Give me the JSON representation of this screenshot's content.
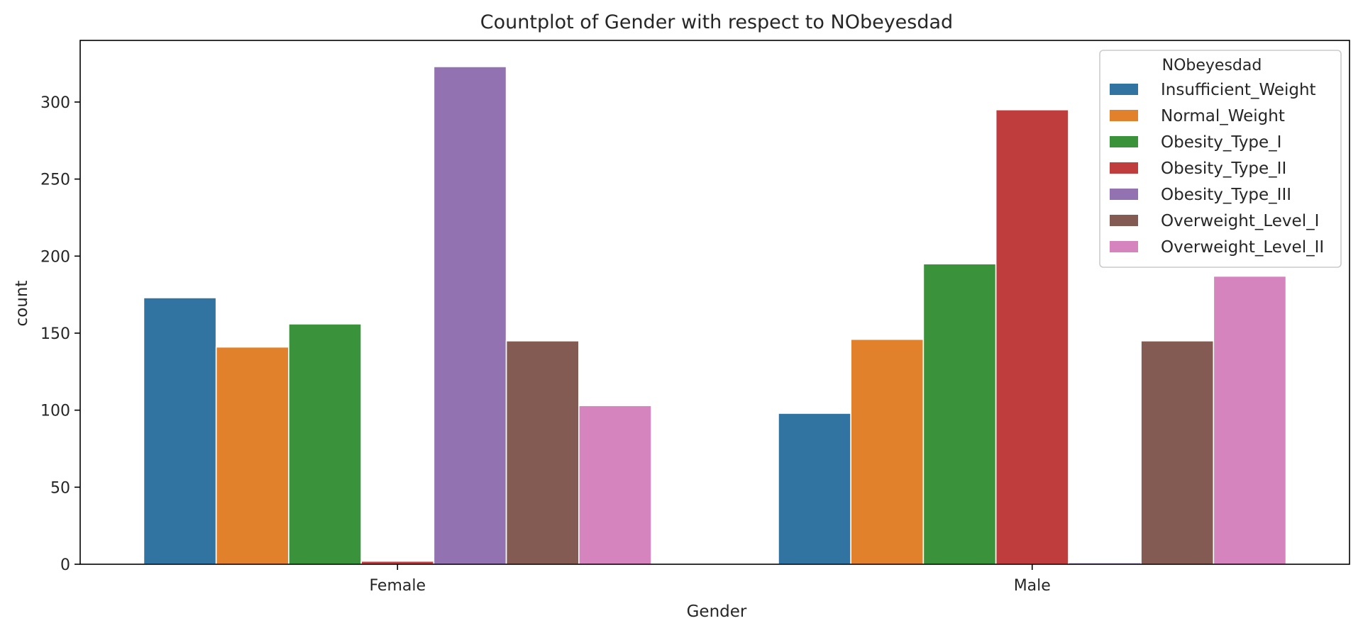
{
  "chart_data": {
    "type": "bar",
    "title": "Countplot of Gender with respect to NObeyesdad",
    "xlabel": "Gender",
    "ylabel": "count",
    "categories": [
      "Female",
      "Male"
    ],
    "ylim": [
      0,
      340
    ],
    "yticks": [
      0,
      50,
      100,
      150,
      200,
      250,
      300
    ],
    "grid": false,
    "legend": {
      "title": "NObeyesdad",
      "placement": "top-right"
    },
    "series": [
      {
        "name": "Insufficient_Weight",
        "color": "#3274a1",
        "values": [
          173,
          98
        ]
      },
      {
        "name": "Normal_Weight",
        "color": "#e1812c",
        "values": [
          141,
          146
        ]
      },
      {
        "name": "Obesity_Type_I",
        "color": "#3a923a",
        "values": [
          156,
          195
        ]
      },
      {
        "name": "Obesity_Type_II",
        "color": "#c03d3e",
        "values": [
          2,
          295
        ]
      },
      {
        "name": "Obesity_Type_III",
        "color": "#9372b2",
        "values": [
          323,
          1
        ]
      },
      {
        "name": "Overweight_Level_I",
        "color": "#845b53",
        "values": [
          145,
          145
        ]
      },
      {
        "name": "Overweight_Level_II",
        "color": "#d684bd",
        "values": [
          103,
          187
        ]
      }
    ]
  }
}
